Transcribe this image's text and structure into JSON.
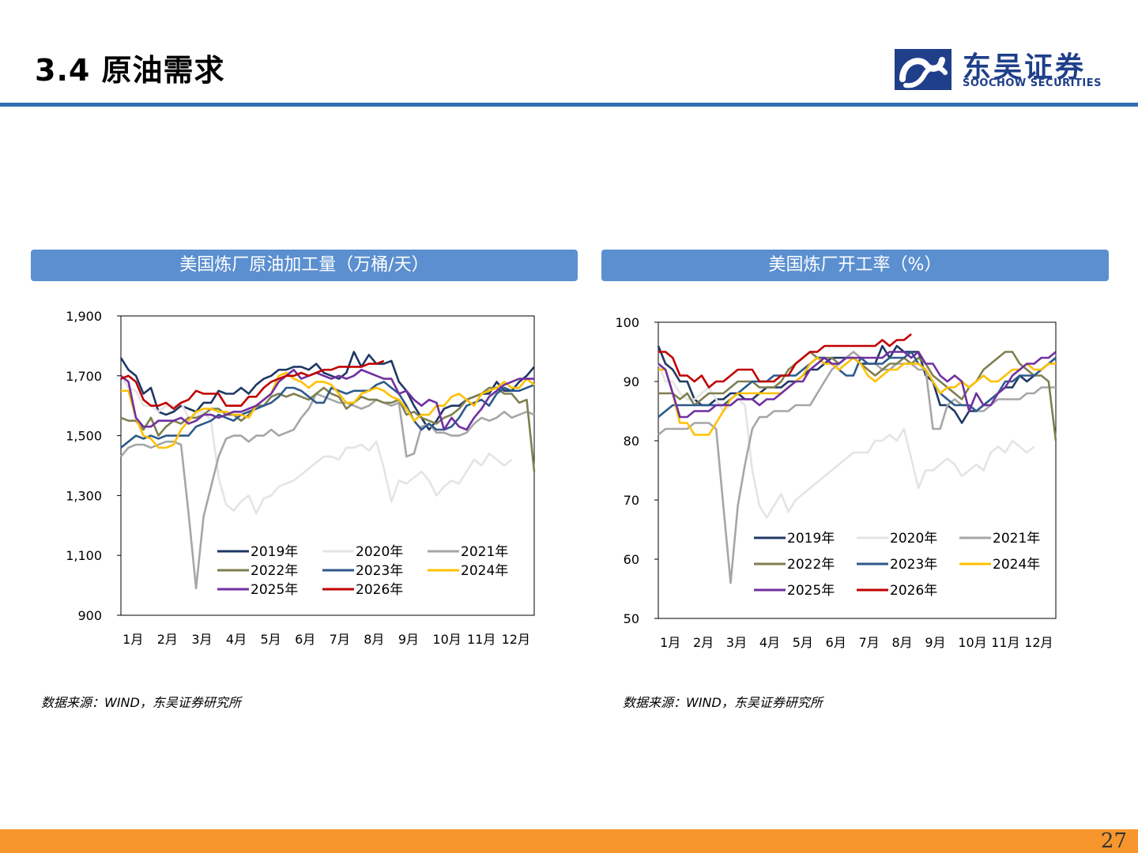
{
  "header": {
    "title": "3.4 原油需求"
  },
  "logo": {
    "cn": "东吴证券",
    "en": "SOOCHOW SECURITIES",
    "icon": "soochow-logo-icon",
    "color": "#1f3f8a"
  },
  "footer": {
    "page_number": "27",
    "bar_color": "#f7962c"
  },
  "charts": [
    {
      "header": "美国炼厂原油加工量（万桶/天）",
      "source": "数据来源：WIND，东吴证券研究所"
    },
    {
      "header": "美国炼厂开工率（%）",
      "source": "数据来源：WIND，东吴证券研究所"
    }
  ],
  "chart_data": [
    {
      "type": "line",
      "title": "美国炼厂原油加工量（万桶/天）",
      "ylim": [
        900,
        1900
      ],
      "yticks": [
        "1,900",
        "1,700",
        "1,500",
        "1,300",
        "1,100",
        "900"
      ],
      "yticks_values": [
        1900,
        1700,
        1500,
        1300,
        1100,
        900
      ],
      "months": [
        "1月",
        "2月",
        "3月",
        "4月",
        "5月",
        "6月",
        "7月",
        "8月",
        "9月",
        "10月",
        "11月",
        "12月"
      ],
      "legend_position": "bottom-center",
      "grid": false,
      "series": [
        {
          "name": "2019年",
          "color": "#1f3864",
          "values": [
            1760,
            1720,
            1700,
            1640,
            1660,
            1580,
            1570,
            1580,
            1600,
            1590,
            1580,
            1610,
            1610,
            1650,
            1640,
            1640,
            1660,
            1640,
            1670,
            1690,
            1700,
            1720,
            1720,
            1730,
            1730,
            1720,
            1740,
            1710,
            1700,
            1690,
            1710,
            1780,
            1730,
            1770,
            1740,
            1740,
            1750,
            1680,
            1650,
            1600,
            1560,
            1520,
            1550,
            1590,
            1600,
            1600,
            1620,
            1630,
            1640,
            1640,
            1680,
            1650,
            1650,
            1680,
            1700,
            1730
          ]
        },
        {
          "name": "2020年",
          "color": "#e4e4e4",
          "values": [
            1700,
            1660,
            1650,
            1600,
            1600,
            1580,
            1600,
            1600,
            1610,
            1560,
            1570,
            1580,
            1550,
            1360,
            1270,
            1250,
            1280,
            1300,
            1240,
            1290,
            1300,
            1330,
            1340,
            1350,
            1370,
            1390,
            1410,
            1430,
            1430,
            1420,
            1460,
            1460,
            1470,
            1450,
            1480,
            1390,
            1280,
            1350,
            1340,
            1360,
            1380,
            1350,
            1300,
            1330,
            1350,
            1340,
            1380,
            1420,
            1400,
            1440,
            1420,
            1400,
            1420
          ]
        },
        {
          "name": "2021年",
          "color": "#a6a6a6",
          "values": [
            1430,
            1460,
            1470,
            1470,
            1460,
            1470,
            1480,
            1480,
            1470,
            1240,
            990,
            1230,
            1330,
            1430,
            1490,
            1500,
            1500,
            1480,
            1500,
            1500,
            1520,
            1500,
            1510,
            1520,
            1560,
            1590,
            1640,
            1630,
            1620,
            1610,
            1610,
            1600,
            1590,
            1600,
            1620,
            1610,
            1600,
            1610,
            1430,
            1440,
            1530,
            1540,
            1510,
            1510,
            1500,
            1500,
            1510,
            1540,
            1560,
            1550,
            1560,
            1580,
            1560,
            1570,
            1580,
            1570
          ]
        },
        {
          "name": "2022年",
          "color": "#7f7f50",
          "values": [
            1560,
            1550,
            1550,
            1520,
            1560,
            1500,
            1530,
            1550,
            1540,
            1560,
            1560,
            1570,
            1590,
            1590,
            1570,
            1570,
            1550,
            1570,
            1600,
            1600,
            1630,
            1640,
            1630,
            1640,
            1630,
            1620,
            1640,
            1660,
            1640,
            1630,
            1590,
            1610,
            1630,
            1620,
            1620,
            1610,
            1610,
            1620,
            1570,
            1580,
            1560,
            1550,
            1540,
            1560,
            1570,
            1590,
            1620,
            1630,
            1640,
            1660,
            1660,
            1640,
            1640,
            1610,
            1620,
            1380
          ]
        },
        {
          "name": "2023年",
          "color": "#2e5a8c",
          "values": [
            1460,
            1480,
            1500,
            1490,
            1500,
            1490,
            1500,
            1500,
            1500,
            1500,
            1530,
            1540,
            1550,
            1570,
            1560,
            1550,
            1570,
            1580,
            1590,
            1600,
            1610,
            1630,
            1660,
            1660,
            1650,
            1630,
            1610,
            1610,
            1660,
            1650,
            1640,
            1650,
            1650,
            1650,
            1670,
            1680,
            1660,
            1640,
            1600,
            1550,
            1520,
            1540,
            1520,
            1520,
            1530,
            1560,
            1600,
            1610,
            1620,
            1600,
            1640,
            1660,
            1650,
            1650,
            1660,
            1670
          ]
        },
        {
          "name": "2024年",
          "color": "#ffc000",
          "values": [
            1650,
            1650,
            1560,
            1500,
            1490,
            1460,
            1460,
            1470,
            1520,
            1550,
            1580,
            1590,
            1590,
            1580,
            1580,
            1570,
            1570,
            1560,
            1600,
            1620,
            1640,
            1700,
            1710,
            1690,
            1680,
            1660,
            1680,
            1680,
            1670,
            1640,
            1610,
            1610,
            1640,
            1650,
            1660,
            1650,
            1630,
            1620,
            1590,
            1550,
            1570,
            1570,
            1600,
            1600,
            1630,
            1640,
            1620,
            1600,
            1640,
            1650,
            1660,
            1680,
            1660,
            1660,
            1690,
            1670
          ]
        },
        {
          "name": "2025年",
          "color": "#7030a0",
          "values": [
            1700,
            1680,
            1560,
            1530,
            1530,
            1550,
            1550,
            1550,
            1560,
            1540,
            1550,
            1570,
            1570,
            1560,
            1570,
            1580,
            1580,
            1590,
            1600,
            1620,
            1640,
            1680,
            1700,
            1720,
            1690,
            1700,
            1710,
            1700,
            1690,
            1700,
            1690,
            1700,
            1720,
            1710,
            1700,
            1690,
            1690,
            1640,
            1650,
            1620,
            1600,
            1620,
            1610,
            1520,
            1560,
            1530,
            1520,
            1560,
            1590,
            1630,
            1650,
            1670,
            1680,
            1690,
            1690,
            1690
          ]
        },
        {
          "name": "2026年",
          "color": "#c00000",
          "values": [
            1690,
            1700,
            1680,
            1620,
            1600,
            1600,
            1610,
            1590,
            1610,
            1620,
            1650,
            1640,
            1640,
            1640,
            1600,
            1600,
            1600,
            1630,
            1630,
            1660,
            1680,
            1690,
            1700,
            1700,
            1710,
            1700,
            1710,
            1720,
            1720,
            1730,
            1730,
            1730,
            1730,
            1740,
            1740,
            1750
          ]
        }
      ]
    },
    {
      "type": "line",
      "title": "美国炼厂开工率（%）",
      "ylim": [
        50,
        100
      ],
      "yticks": [
        "100",
        "90",
        "80",
        "70",
        "60",
        "50"
      ],
      "yticks_values": [
        100,
        90,
        80,
        70,
        60,
        50
      ],
      "months": [
        "1月",
        "2月",
        "3月",
        "4月",
        "5月",
        "6月",
        "7月",
        "8月",
        "9月",
        "10月",
        "11月",
        "12月"
      ],
      "legend_position": "bottom-center",
      "grid": false,
      "series": [
        {
          "name": "2019年",
          "color": "#1f3864",
          "values": [
            96,
            93,
            92,
            90,
            90,
            87,
            86,
            86,
            87,
            87,
            88,
            88,
            87,
            87,
            88,
            89,
            89,
            89,
            90,
            90,
            91,
            92,
            92,
            93,
            94,
            94,
            94,
            94,
            93,
            93,
            93,
            96,
            94,
            96,
            95,
            95,
            95,
            91,
            90,
            86,
            86,
            85,
            83,
            85,
            85,
            86,
            87,
            88,
            89,
            89,
            91,
            90,
            91,
            92,
            93,
            94
          ]
        },
        {
          "name": "2020年",
          "color": "#e4e4e4",
          "values": [
            93,
            90,
            90,
            88,
            87,
            87,
            88,
            89,
            87,
            85,
            86,
            87,
            86,
            75,
            69,
            67,
            69,
            71,
            68,
            70,
            71,
            72,
            73,
            74,
            75,
            76,
            77,
            78,
            78,
            78,
            80,
            80,
            81,
            80,
            82,
            77,
            72,
            75,
            75,
            76,
            77,
            76,
            74,
            75,
            76,
            75,
            78,
            79,
            78,
            80,
            79,
            78,
            79
          ]
        },
        {
          "name": "2021年",
          "color": "#a6a6a6",
          "values": [
            81,
            82,
            82,
            82,
            82,
            83,
            83,
            83,
            82,
            69,
            56,
            69,
            76,
            82,
            84,
            84,
            85,
            85,
            85,
            86,
            86,
            86,
            88,
            90,
            92,
            93,
            94,
            95,
            94,
            93,
            93,
            92,
            92,
            93,
            93,
            93,
            92,
            92,
            82,
            82,
            86,
            87,
            86,
            86,
            85,
            85,
            86,
            87,
            87,
            87,
            87,
            88,
            88,
            89,
            89,
            89
          ]
        },
        {
          "name": "2022年",
          "color": "#7f7f50",
          "values": [
            88,
            88,
            88,
            87,
            88,
            86,
            87,
            88,
            88,
            88,
            89,
            90,
            90,
            90,
            89,
            89,
            89,
            90,
            92,
            93,
            94,
            95,
            94,
            94,
            94,
            93,
            94,
            94,
            93,
            92,
            91,
            92,
            93,
            93,
            94,
            93,
            94,
            93,
            91,
            90,
            89,
            88,
            87,
            89,
            90,
            92,
            93,
            94,
            95,
            95,
            93,
            92,
            91,
            91,
            90,
            80
          ]
        },
        {
          "name": "2023年",
          "color": "#2e5a8c",
          "values": [
            84,
            85,
            86,
            86,
            86,
            86,
            86,
            86,
            86,
            86,
            87,
            88,
            89,
            90,
            90,
            90,
            91,
            91,
            91,
            91,
            92,
            93,
            94,
            94,
            93,
            92,
            91,
            91,
            94,
            93,
            93,
            93,
            94,
            94,
            94,
            95,
            93,
            92,
            90,
            88,
            87,
            86,
            86,
            86,
            85,
            86,
            87,
            88,
            90,
            90,
            91,
            91,
            91,
            92,
            93,
            94
          ]
        },
        {
          "name": "2024年",
          "color": "#ffc000",
          "values": [
            92,
            92,
            88,
            83,
            83,
            81,
            81,
            81,
            83,
            85,
            87,
            88,
            88,
            88,
            88,
            88,
            88,
            88,
            89,
            90,
            91,
            93,
            94,
            93,
            93,
            92,
            93,
            94,
            93,
            91,
            90,
            91,
            92,
            92,
            93,
            93,
            93,
            92,
            90,
            88,
            89,
            89,
            90,
            89,
            90,
            91,
            90,
            90,
            91,
            92,
            92,
            93,
            92,
            92,
            93,
            93
          ]
        },
        {
          "name": "2025年",
          "color": "#7030a0",
          "values": [
            93,
            92,
            88,
            84,
            84,
            85,
            85,
            85,
            86,
            86,
            86,
            87,
            87,
            87,
            86,
            87,
            87,
            88,
            89,
            90,
            90,
            92,
            93,
            94,
            93,
            93,
            94,
            94,
            94,
            94,
            94,
            94,
            95,
            95,
            95,
            94,
            95,
            93,
            93,
            91,
            90,
            91,
            90,
            85,
            88,
            86,
            86,
            88,
            89,
            91,
            92,
            93,
            93,
            94,
            94,
            95
          ]
        },
        {
          "name": "2026年",
          "color": "#c00000",
          "values": [
            95,
            95,
            94,
            91,
            91,
            90,
            91,
            89,
            90,
            90,
            91,
            92,
            92,
            92,
            90,
            90,
            90,
            91,
            91,
            93,
            94,
            95,
            95,
            96,
            96,
            96,
            96,
            96,
            96,
            96,
            96,
            97,
            96,
            97,
            97,
            98
          ]
        }
      ]
    }
  ]
}
